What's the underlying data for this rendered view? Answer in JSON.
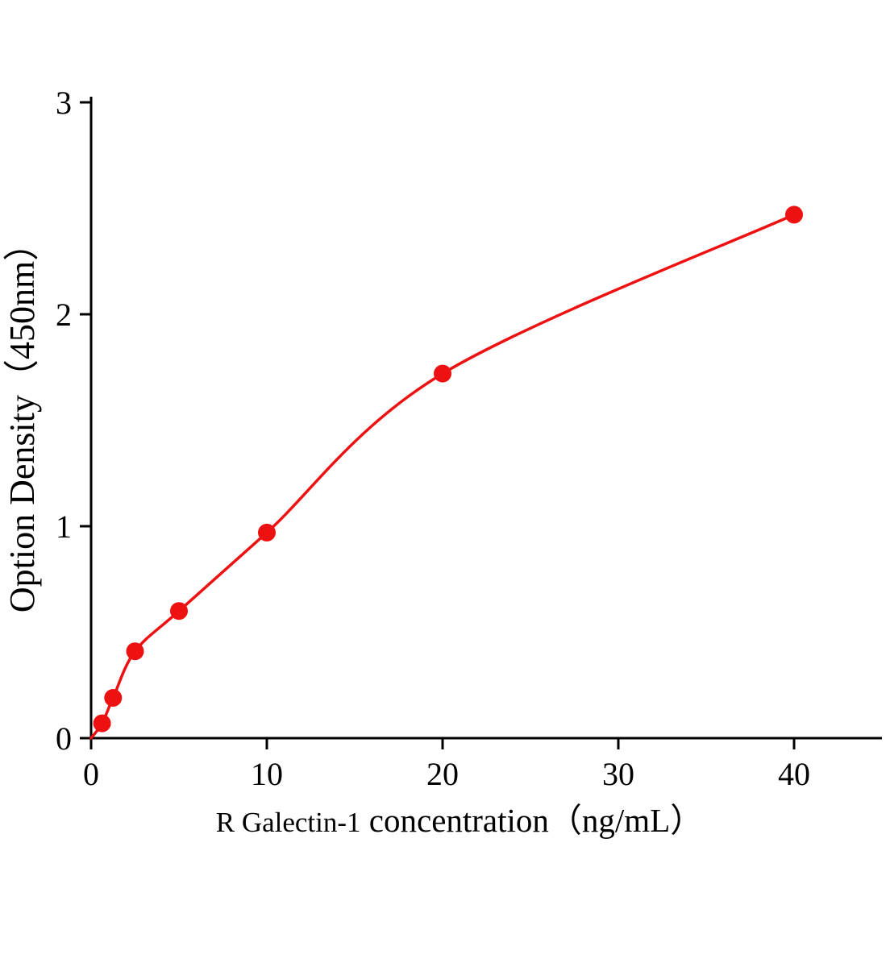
{
  "chart_data": {
    "type": "scatter",
    "xlabel_prefix": "R Galectin-1",
    "xlabel_rest": " concentration（ng/mL）",
    "ylabel": "Option Density（450nm）",
    "x_ticks": [
      0,
      10,
      20,
      30,
      40
    ],
    "y_ticks": [
      0,
      1,
      2,
      3
    ],
    "xlim": [
      0,
      45
    ],
    "ylim": [
      0,
      3
    ],
    "grid": false,
    "legend": "none",
    "curve_color": "#ee1111",
    "point_color": "#ee1111",
    "axis_color": "#000000",
    "points": [
      {
        "x": 0.625,
        "y": 0.07
      },
      {
        "x": 1.25,
        "y": 0.19
      },
      {
        "x": 2.5,
        "y": 0.41
      },
      {
        "x": 5,
        "y": 0.6
      },
      {
        "x": 10,
        "y": 0.97
      },
      {
        "x": 20,
        "y": 1.72
      },
      {
        "x": 40,
        "y": 2.47
      }
    ],
    "curve_start": {
      "x": 0,
      "y": 0
    }
  }
}
